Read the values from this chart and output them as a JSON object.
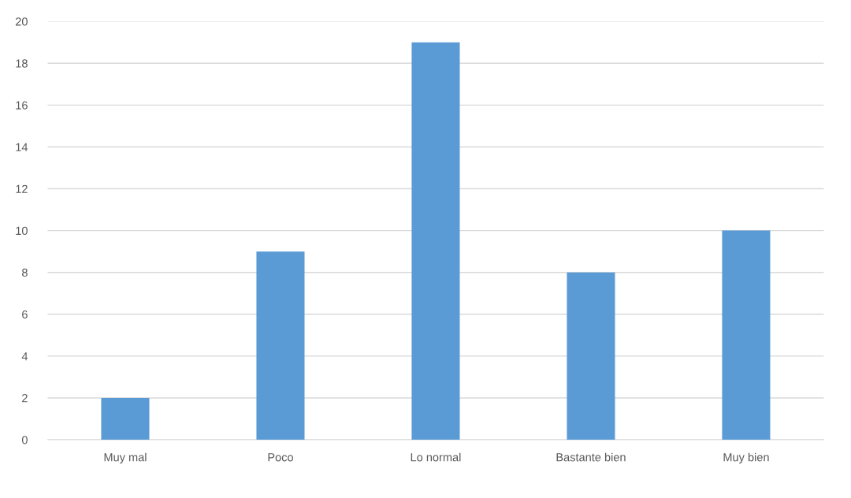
{
  "chart_data": {
    "type": "bar",
    "categories": [
      "Muy mal",
      "Poco",
      "Lo normal",
      "Bastante bien",
      "Muy bien"
    ],
    "values": [
      2,
      9,
      19,
      8,
      10
    ],
    "color": "#5b9bd5",
    "ylim": [
      0,
      20
    ],
    "yticks": [
      0,
      2,
      4,
      6,
      8,
      10,
      12,
      14,
      16,
      18,
      20
    ],
    "grid": "y",
    "legend": false
  }
}
